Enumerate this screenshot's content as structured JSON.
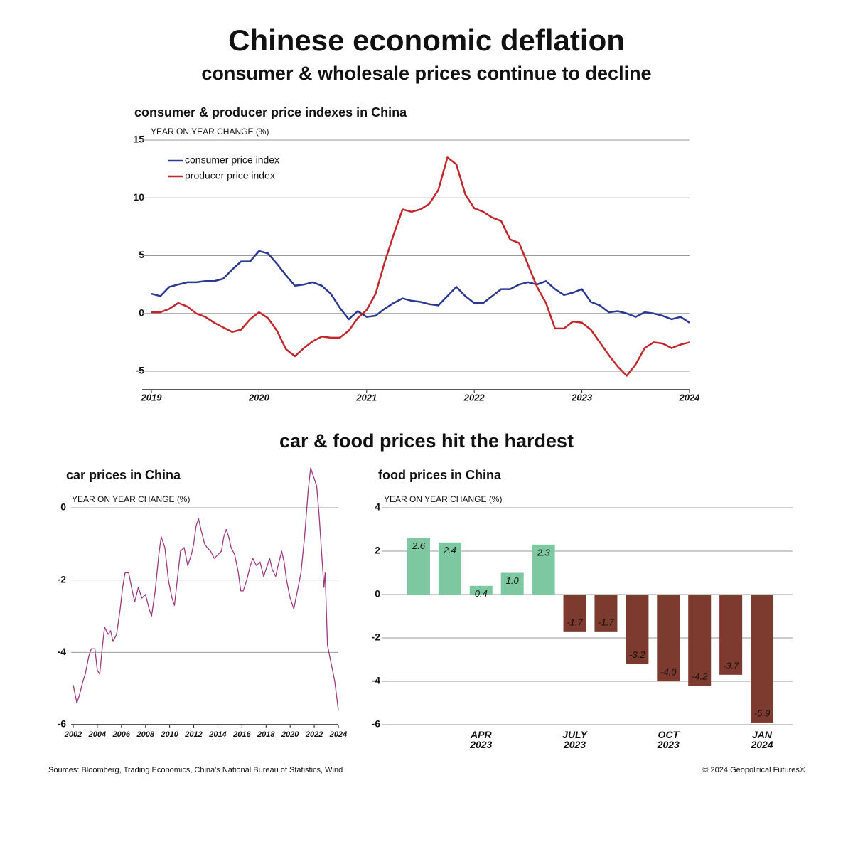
{
  "title": "Chinese economic deflation",
  "subtitle": "consumer & wholesale prices continue to decline",
  "section_title": "car & food prices hit the hardest",
  "sources": "Sources: Bloomberg, Trading Economics, China's National Bureau of Statistics, Wind",
  "copyright": "© 2024 Geopolitical Futures®",
  "chart_data": [
    {
      "type": "line",
      "title": "consumer & producer price indexes in China",
      "y_label": "YEAR ON YEAR CHANGE (%)",
      "categories": [
        "2019",
        null,
        null,
        null,
        null,
        null,
        null,
        null,
        null,
        null,
        null,
        null,
        "2020",
        null,
        null,
        null,
        null,
        null,
        null,
        null,
        null,
        null,
        null,
        null,
        "2021",
        null,
        null,
        null,
        null,
        null,
        null,
        null,
        null,
        null,
        null,
        null,
        "2022",
        null,
        null,
        null,
        null,
        null,
        null,
        null,
        null,
        null,
        null,
        null,
        "2023",
        null,
        null,
        null,
        null,
        null,
        null,
        null,
        null,
        null,
        null,
        null,
        "2024"
      ],
      "series": [
        {
          "name": "consumer price index",
          "color": "#2b3990",
          "values": [
            1.7,
            1.5,
            2.3,
            2.5,
            2.7,
            2.7,
            2.8,
            2.8,
            3.0,
            3.8,
            4.5,
            4.5,
            5.4,
            5.2,
            4.3,
            3.3,
            2.4,
            2.5,
            2.7,
            2.4,
            1.7,
            0.5,
            -0.5,
            0.2,
            -0.3,
            -0.2,
            0.4,
            0.9,
            1.3,
            1.1,
            1.0,
            0.8,
            0.7,
            1.5,
            2.3,
            1.5,
            0.9,
            0.9,
            1.5,
            2.1,
            2.1,
            2.5,
            2.7,
            2.5,
            2.8,
            2.1,
            1.6,
            1.8,
            2.1,
            1.0,
            0.7,
            0.1,
            0.2,
            0.0,
            -0.3,
            0.1,
            0.0,
            -0.2,
            -0.5,
            -0.3,
            -0.8
          ]
        },
        {
          "name": "producer price index",
          "color": "#c1272d",
          "values": [
            0.1,
            0.1,
            0.4,
            0.9,
            0.6,
            0.0,
            -0.3,
            -0.8,
            -1.2,
            -1.6,
            -1.4,
            -0.5,
            0.1,
            -0.4,
            -1.5,
            -3.1,
            -3.7,
            -3.0,
            -2.4,
            -2.0,
            -2.1,
            -2.1,
            -1.5,
            -0.4,
            0.3,
            1.7,
            4.4,
            6.8,
            9.0,
            8.8,
            9.0,
            9.5,
            10.7,
            13.5,
            12.9,
            10.3,
            9.1,
            8.8,
            8.3,
            8.0,
            6.4,
            6.1,
            4.2,
            2.3,
            0.9,
            -1.3,
            -1.3,
            -0.7,
            -0.8,
            -1.4,
            -2.5,
            -3.6,
            -4.6,
            -5.4,
            -4.4,
            -3.0,
            -2.5,
            -2.6,
            -3.0,
            -2.7,
            -2.5
          ]
        }
      ],
      "ylim": [
        -6.6,
        15
      ],
      "yticks": [
        -5,
        0,
        5,
        10,
        15
      ],
      "grid": true,
      "legend": "upper left"
    },
    {
      "type": "line",
      "title": "car prices in China",
      "y_label": "YEAR ON YEAR CHANGE (%)",
      "color": "#9b3a80",
      "x": [
        2002.0,
        2002.3,
        2002.5,
        2002.8,
        2003.0,
        2003.3,
        2003.5,
        2003.8,
        2004.0,
        2004.2,
        2004.4,
        2004.6,
        2004.9,
        2005.1,
        2005.3,
        2005.6,
        2005.9,
        2006.1,
        2006.3,
        2006.6,
        2006.9,
        2007.1,
        2007.4,
        2007.7,
        2008.0,
        2008.3,
        2008.5,
        2008.8,
        2009.1,
        2009.3,
        2009.6,
        2009.9,
        2010.2,
        2010.4,
        2010.7,
        2010.9,
        2011.2,
        2011.5,
        2011.8,
        2012.0,
        2012.2,
        2012.4,
        2012.6,
        2012.9,
        2013.1,
        2013.4,
        2013.7,
        2014.0,
        2014.3,
        2014.5,
        2014.7,
        2014.9,
        2015.1,
        2015.4,
        2015.7,
        2015.9,
        2016.1,
        2016.4,
        2016.7,
        2016.9,
        2017.2,
        2017.5,
        2017.8,
        2018.0,
        2018.3,
        2018.5,
        2018.8,
        2019.0,
        2019.3,
        2019.5,
        2019.7,
        2020.0,
        2020.3,
        2020.6,
        2020.9,
        2021.2,
        2021.5,
        2021.7,
        2021.9,
        2022.2,
        2022.4,
        2022.6,
        2022.8,
        2022.9,
        2023.1,
        2023.4,
        2023.7,
        2024.0
      ],
      "values": [
        -4.9,
        -5.4,
        -5.2,
        -4.8,
        -4.6,
        -4.1,
        -3.9,
        -3.9,
        -4.5,
        -4.6,
        -3.9,
        -3.3,
        -3.5,
        -3.4,
        -3.7,
        -3.5,
        -2.8,
        -2.2,
        -1.8,
        -1.8,
        -2.3,
        -2.6,
        -2.2,
        -2.5,
        -2.4,
        -2.8,
        -3.0,
        -2.3,
        -1.3,
        -0.8,
        -1.1,
        -2.0,
        -2.5,
        -2.7,
        -1.8,
        -1.2,
        -1.1,
        -1.6,
        -1.3,
        -1.0,
        -0.5,
        -0.3,
        -0.6,
        -1.0,
        -1.1,
        -1.2,
        -1.4,
        -1.3,
        -1.2,
        -0.8,
        -0.6,
        -0.8,
        -1.1,
        -1.3,
        -1.8,
        -2.3,
        -2.3,
        -2.0,
        -1.6,
        -1.4,
        -1.6,
        -1.5,
        -1.9,
        -1.7,
        -1.4,
        -1.7,
        -1.9,
        -1.6,
        -1.2,
        -1.5,
        -2.0,
        -2.5,
        -2.8,
        -2.3,
        -1.8,
        -0.8,
        0.5,
        1.1,
        0.9,
        0.6,
        -0.2,
        -1.2,
        -2.2,
        -1.8,
        -3.8,
        -4.3,
        -4.8,
        -5.6
      ],
      "xlim": [
        2002,
        2024
      ],
      "xticks": [
        2002,
        2004,
        2006,
        2008,
        2010,
        2012,
        2014,
        2016,
        2018,
        2020,
        2022,
        2024
      ],
      "ylim": [
        -6,
        0
      ],
      "yticks": [
        0,
        -2,
        -4,
        -6
      ],
      "grid": true
    },
    {
      "type": "bar",
      "title": "food prices in China",
      "y_label": "YEAR ON YEAR CHANGE (%)",
      "categories": [
        null,
        null,
        "APR\n2023",
        null,
        null,
        "JULY\n2023",
        null,
        null,
        "OCT\n2023",
        null,
        null,
        "JAN\n2024"
      ],
      "values": [
        2.6,
        2.4,
        0.4,
        1.0,
        2.3,
        -1.7,
        -1.7,
        -3.2,
        -4.0,
        -4.2,
        -3.7,
        -5.9
      ],
      "value_labels": [
        "2.6",
        "2.4",
        "0.4",
        "1.0",
        "2.3",
        "-1.7",
        "-1.7",
        "-3.2",
        "-4.0",
        "-4.2",
        "-3.7",
        "-5.9"
      ],
      "color": "#7dc8a1",
      "negative_color": "#7d3a2f",
      "ylim": [
        -6,
        4
      ],
      "yticks": [
        4,
        2,
        0,
        -2,
        -4,
        -6
      ],
      "grid": true
    }
  ]
}
